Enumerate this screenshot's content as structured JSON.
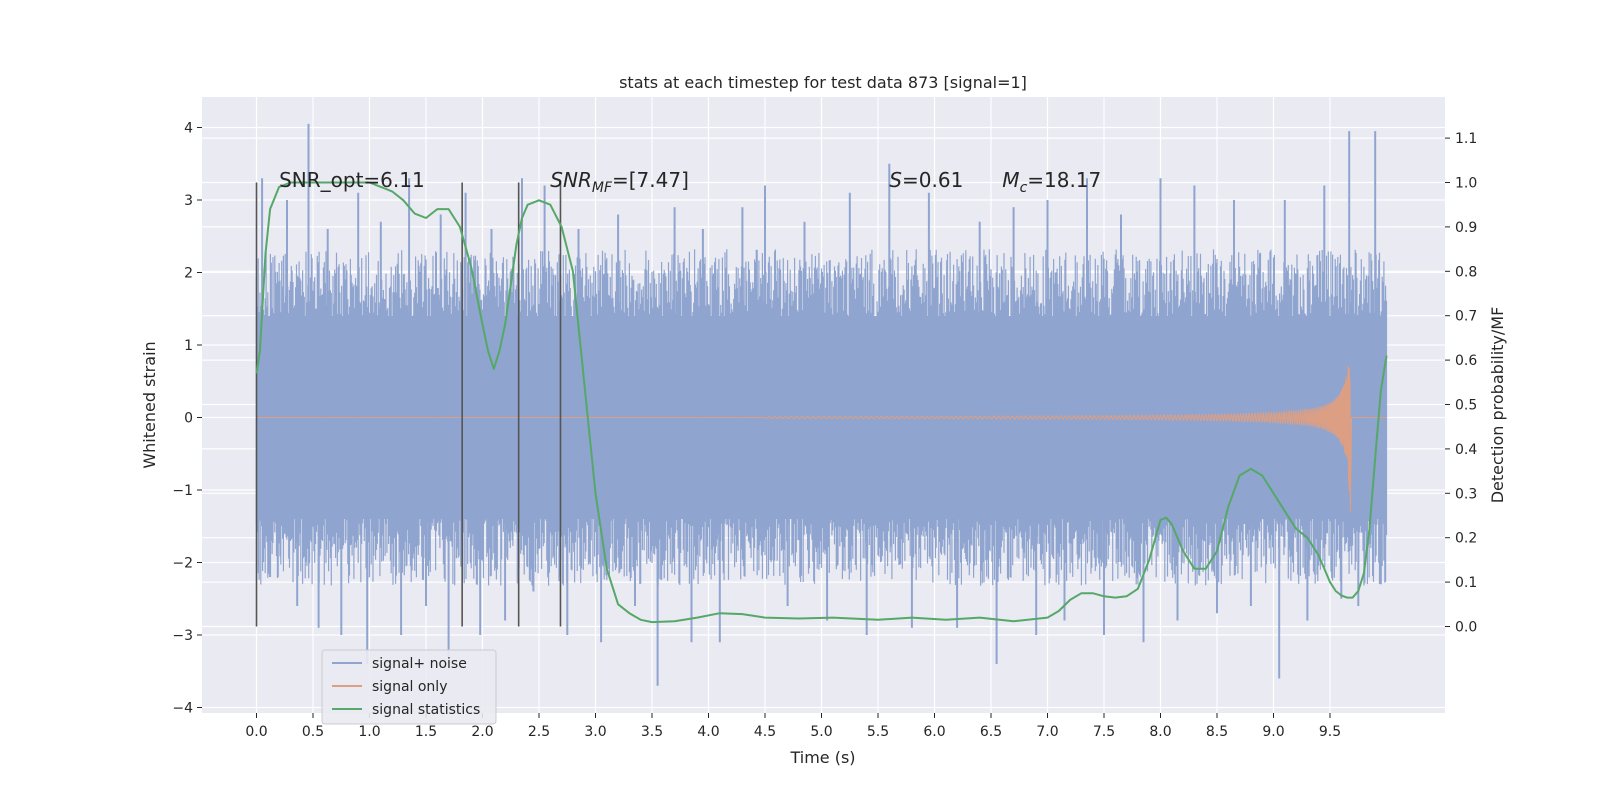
{
  "chart_data": {
    "type": "line",
    "title": "stats at each timestep for test data 873 [signal=1]",
    "xlabel": "Time (s)",
    "ylabel_left": "Whitened strain",
    "ylabel_right": "Detection probability/MF",
    "xlim": [
      -0.5,
      10.5
    ],
    "ylim_left": [
      -4.1,
      4.4
    ],
    "ylim_right": [
      -0.19,
      1.19
    ],
    "x_ticks": [
      "0.0",
      "0.5",
      "1.0",
      "1.5",
      "2.0",
      "2.5",
      "3.0",
      "3.5",
      "4.0",
      "4.5",
      "5.0",
      "5.5",
      "6.0",
      "6.5",
      "7.0",
      "7.5",
      "8.0",
      "8.5",
      "9.0",
      "9.5"
    ],
    "x_tick_values": [
      0,
      0.5,
      1,
      1.5,
      2,
      2.5,
      3,
      3.5,
      4,
      4.5,
      5,
      5.5,
      6,
      6.5,
      7,
      7.5,
      8,
      8.5,
      9,
      9.5
    ],
    "y_ticks_left": [
      "4",
      "3",
      "2",
      "1",
      "0",
      "−1",
      "−2",
      "−3",
      "−4"
    ],
    "y_tick_values_left": [
      4,
      3,
      2,
      1,
      0,
      -1,
      -2,
      -3,
      -4
    ],
    "y_ticks_right": [
      "1.1",
      "1.0",
      "0.9",
      "0.8",
      "0.7",
      "0.6",
      "0.5",
      "0.4",
      "0.3",
      "0.2",
      "0.1",
      "0.0"
    ],
    "y_tick_values_right": [
      1.1,
      1.0,
      0.9,
      0.8,
      0.7,
      0.6,
      0.5,
      0.4,
      0.3,
      0.2,
      0.1,
      0.0
    ],
    "grid": true,
    "legend_position": "bottom-left",
    "annotations": [
      {
        "text": "SNR_opt=6.11",
        "x": 0.2
      },
      {
        "text": "SNR",
        "sub": "MF",
        "suffix": "=[7.47]",
        "x": 2.6
      },
      {
        "text": "S",
        "suffix": "=0.61",
        "x": 5.6
      },
      {
        "text": "M",
        "sub": "c",
        "suffix": "=18.17",
        "x": 6.6
      }
    ],
    "vertical_lines_x": [
      0.0,
      1.82,
      2.32,
      2.69
    ],
    "vertical_lines_right_range": [
      0.0,
      1.0
    ],
    "series": [
      {
        "name": "signal+ noise",
        "color": "#8fa4cf",
        "axis": "left",
        "x_range": [
          0.0,
          10.0
        ],
        "envelope_typical": 1.6,
        "band_solid": 1.4,
        "peak_samples": [
          [
            0.05,
            3.3
          ],
          [
            0.12,
            -2.2
          ],
          [
            0.27,
            3.0
          ],
          [
            0.36,
            -2.6
          ],
          [
            0.46,
            4.05
          ],
          [
            0.55,
            -2.9
          ],
          [
            0.63,
            2.6
          ],
          [
            0.75,
            -3.0
          ],
          [
            0.9,
            3.1
          ],
          [
            0.98,
            -3.4
          ],
          [
            1.1,
            2.7
          ],
          [
            1.28,
            -3.0
          ],
          [
            1.35,
            3.3
          ],
          [
            1.5,
            -2.6
          ],
          [
            1.63,
            2.8
          ],
          [
            1.7,
            -3.3
          ],
          [
            1.85,
            3.1
          ],
          [
            1.98,
            -3.0
          ],
          [
            2.08,
            2.6
          ],
          [
            2.2,
            -2.8
          ],
          [
            2.35,
            3.3
          ],
          [
            2.45,
            -2.4
          ],
          [
            2.55,
            3.2
          ],
          [
            2.75,
            -3.0
          ],
          [
            2.85,
            2.6
          ],
          [
            3.05,
            -3.1
          ],
          [
            3.2,
            2.8
          ],
          [
            3.35,
            -2.6
          ],
          [
            3.55,
            -3.7
          ],
          [
            3.7,
            2.9
          ],
          [
            3.85,
            -3.1
          ],
          [
            3.95,
            2.6
          ],
          [
            4.1,
            -3.1
          ],
          [
            4.3,
            2.9
          ],
          [
            4.5,
            3.2
          ],
          [
            4.7,
            -2.6
          ],
          [
            4.85,
            2.7
          ],
          [
            5.05,
            -2.8
          ],
          [
            5.25,
            3.1
          ],
          [
            5.4,
            -3.0
          ],
          [
            5.6,
            3.5
          ],
          [
            5.8,
            -2.9
          ],
          [
            5.95,
            3.1
          ],
          [
            6.2,
            -2.9
          ],
          [
            6.4,
            2.7
          ],
          [
            6.55,
            -3.4
          ],
          [
            6.7,
            2.9
          ],
          [
            6.9,
            -3.0
          ],
          [
            7.0,
            3.0
          ],
          [
            7.15,
            -2.8
          ],
          [
            7.35,
            3.3
          ],
          [
            7.5,
            -3.0
          ],
          [
            7.65,
            2.8
          ],
          [
            7.85,
            -3.1
          ],
          [
            8.0,
            3.3
          ],
          [
            8.15,
            -2.8
          ],
          [
            8.3,
            3.2
          ],
          [
            8.5,
            -2.7
          ],
          [
            8.65,
            3.0
          ],
          [
            8.8,
            -2.6
          ],
          [
            9.05,
            -3.6
          ],
          [
            9.1,
            3.0
          ],
          [
            9.3,
            -2.8
          ],
          [
            9.45,
            3.2
          ],
          [
            9.6,
            -2.5
          ],
          [
            9.67,
            3.95
          ],
          [
            9.75,
            -2.6
          ],
          [
            9.9,
            3.95
          ],
          [
            9.95,
            -2.3
          ]
        ]
      },
      {
        "name": "signal only",
        "color": "#dd9f84",
        "axis": "left",
        "chirp_start": 4.5,
        "merger_time": 9.68,
        "peak_amplitude": 1.45
      },
      {
        "name": "signal statistics",
        "color": "#55a868",
        "axis": "right",
        "x": [
          0.0,
          0.03,
          0.08,
          0.12,
          0.2,
          0.3,
          0.5,
          0.8,
          1.0,
          1.1,
          1.2,
          1.3,
          1.4,
          1.5,
          1.6,
          1.7,
          1.8,
          1.9,
          2.0,
          2.05,
          2.1,
          2.15,
          2.2,
          2.25,
          2.3,
          2.35,
          2.4,
          2.5,
          2.6,
          2.7,
          2.8,
          2.9,
          3.0,
          3.1,
          3.2,
          3.3,
          3.4,
          3.5,
          3.7,
          3.9,
          4.1,
          4.3,
          4.5,
          4.8,
          5.1,
          5.5,
          5.8,
          6.1,
          6.4,
          6.7,
          7.0,
          7.1,
          7.2,
          7.3,
          7.4,
          7.5,
          7.6,
          7.7,
          7.8,
          7.9,
          8.0,
          8.05,
          8.1,
          8.2,
          8.3,
          8.4,
          8.5,
          8.6,
          8.7,
          8.8,
          8.9,
          9.0,
          9.1,
          9.2,
          9.3,
          9.4,
          9.5,
          9.55,
          9.6,
          9.65,
          9.7,
          9.75,
          9.8,
          9.85,
          9.9,
          9.95,
          10.0
        ],
        "values": [
          0.57,
          0.62,
          0.84,
          0.94,
          0.99,
          1.0,
          1.0,
          1.0,
          1.0,
          0.99,
          0.98,
          0.96,
          0.93,
          0.92,
          0.94,
          0.94,
          0.9,
          0.81,
          0.68,
          0.62,
          0.58,
          0.62,
          0.68,
          0.77,
          0.86,
          0.92,
          0.95,
          0.96,
          0.95,
          0.9,
          0.8,
          0.55,
          0.3,
          0.13,
          0.05,
          0.03,
          0.015,
          0.01,
          0.012,
          0.02,
          0.03,
          0.028,
          0.02,
          0.018,
          0.02,
          0.015,
          0.02,
          0.015,
          0.02,
          0.012,
          0.02,
          0.035,
          0.06,
          0.075,
          0.075,
          0.068,
          0.065,
          0.068,
          0.085,
          0.15,
          0.24,
          0.245,
          0.23,
          0.17,
          0.13,
          0.13,
          0.17,
          0.27,
          0.34,
          0.355,
          0.34,
          0.3,
          0.26,
          0.22,
          0.2,
          0.16,
          0.1,
          0.08,
          0.07,
          0.065,
          0.065,
          0.08,
          0.12,
          0.22,
          0.38,
          0.53,
          0.61
        ]
      }
    ]
  }
}
